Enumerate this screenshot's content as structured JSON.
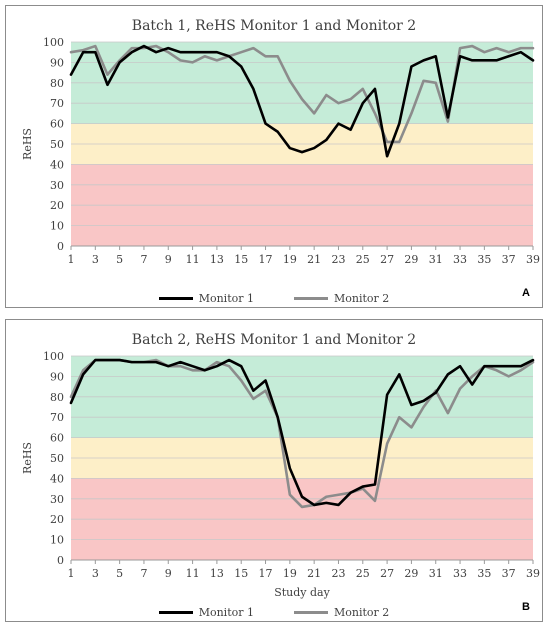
{
  "chart_data": [
    {
      "type": "line",
      "panel_label": "A",
      "title": "Batch 1, ReHS Monitor 1 and Monitor 2",
      "xlabel": "",
      "ylabel": "ReHS",
      "x": [
        1,
        2,
        3,
        4,
        5,
        6,
        7,
        8,
        9,
        10,
        11,
        12,
        13,
        14,
        15,
        16,
        17,
        18,
        19,
        20,
        21,
        22,
        23,
        24,
        25,
        26,
        27,
        28,
        29,
        30,
        31,
        32,
        33,
        34,
        35,
        36,
        37,
        38,
        39
      ],
      "x_tick_labels": [
        "1",
        "3",
        "5",
        "7",
        "9",
        "11",
        "13",
        "15",
        "17",
        "19",
        "21",
        "23",
        "25",
        "27",
        "29",
        "31",
        "33",
        "35",
        "37",
        "39"
      ],
      "y_tick_labels": [
        "0",
        "10",
        "20",
        "30",
        "40",
        "50",
        "60",
        "70",
        "80",
        "90",
        "100"
      ],
      "ylim": [
        0,
        100
      ],
      "grid": true,
      "bands": [
        {
          "from": 0,
          "to": 40,
          "color": "#f9c6c6"
        },
        {
          "from": 40,
          "to": 60,
          "color": "#fdefc8"
        },
        {
          "from": 60,
          "to": 100,
          "color": "#c5ecd8"
        }
      ],
      "legend_position": "bottom",
      "series": [
        {
          "name": "Monitor 1",
          "color": "#000000",
          "values": [
            84,
            95,
            95,
            79,
            90,
            95,
            98,
            95,
            97,
            95,
            95,
            95,
            95,
            93,
            88,
            77,
            60,
            56,
            48,
            46,
            48,
            52,
            60,
            57,
            70,
            77,
            44,
            60,
            88,
            91,
            93,
            63,
            93,
            91,
            91,
            91,
            93,
            95,
            91
          ]
        },
        {
          "name": "Monitor 2",
          "color": "#8c8c8c",
          "values": [
            95,
            96,
            98,
            84,
            91,
            97,
            97,
            98,
            95,
            91,
            90,
            93,
            91,
            93,
            95,
            97,
            93,
            93,
            81,
            72,
            65,
            74,
            70,
            72,
            77,
            65,
            51,
            51,
            65,
            81,
            80,
            61,
            97,
            98,
            95,
            97,
            95,
            97,
            97
          ]
        }
      ]
    },
    {
      "type": "line",
      "panel_label": "B",
      "title": "Batch 2, ReHS Monitor 1 and Monitor 2",
      "xlabel": "Study day",
      "ylabel": "ReHS",
      "x": [
        1,
        2,
        3,
        4,
        5,
        6,
        7,
        8,
        9,
        10,
        11,
        12,
        13,
        14,
        15,
        16,
        17,
        18,
        19,
        20,
        21,
        22,
        23,
        24,
        25,
        26,
        27,
        28,
        29,
        30,
        31,
        32,
        33,
        34,
        35,
        36,
        37,
        38,
        39
      ],
      "x_tick_labels": [
        "1",
        "3",
        "5",
        "7",
        "9",
        "11",
        "13",
        "15",
        "17",
        "19",
        "21",
        "23",
        "25",
        "27",
        "29",
        "31",
        "33",
        "35",
        "37",
        "39"
      ],
      "y_tick_labels": [
        "0",
        "10",
        "20",
        "30",
        "40",
        "50",
        "60",
        "70",
        "80",
        "90",
        "100"
      ],
      "ylim": [
        0,
        100
      ],
      "grid": true,
      "bands": [
        {
          "from": 0,
          "to": 40,
          "color": "#f9c6c6"
        },
        {
          "from": 40,
          "to": 60,
          "color": "#fdefc8"
        },
        {
          "from": 60,
          "to": 100,
          "color": "#c5ecd8"
        }
      ],
      "legend_position": "bottom",
      "series": [
        {
          "name": "Monitor 1",
          "color": "#000000",
          "values": [
            77,
            91,
            98,
            98,
            98,
            97,
            97,
            97,
            95,
            97,
            95,
            93,
            95,
            98,
            95,
            83,
            88,
            70,
            45,
            31,
            27,
            28,
            27,
            33,
            36,
            37,
            81,
            91,
            76,
            78,
            82,
            91,
            95,
            86,
            95,
            95,
            95,
            95,
            98
          ]
        },
        {
          "name": "Monitor 2",
          "color": "#8c8c8c",
          "values": [
            80,
            93,
            98,
            98,
            98,
            97,
            97,
            98,
            95,
            95,
            93,
            93,
            97,
            95,
            88,
            79,
            83,
            70,
            32,
            26,
            27,
            31,
            32,
            33,
            35,
            29,
            57,
            70,
            65,
            75,
            83,
            72,
            84,
            90,
            95,
            93,
            90,
            93,
            97
          ]
        }
      ]
    }
  ]
}
